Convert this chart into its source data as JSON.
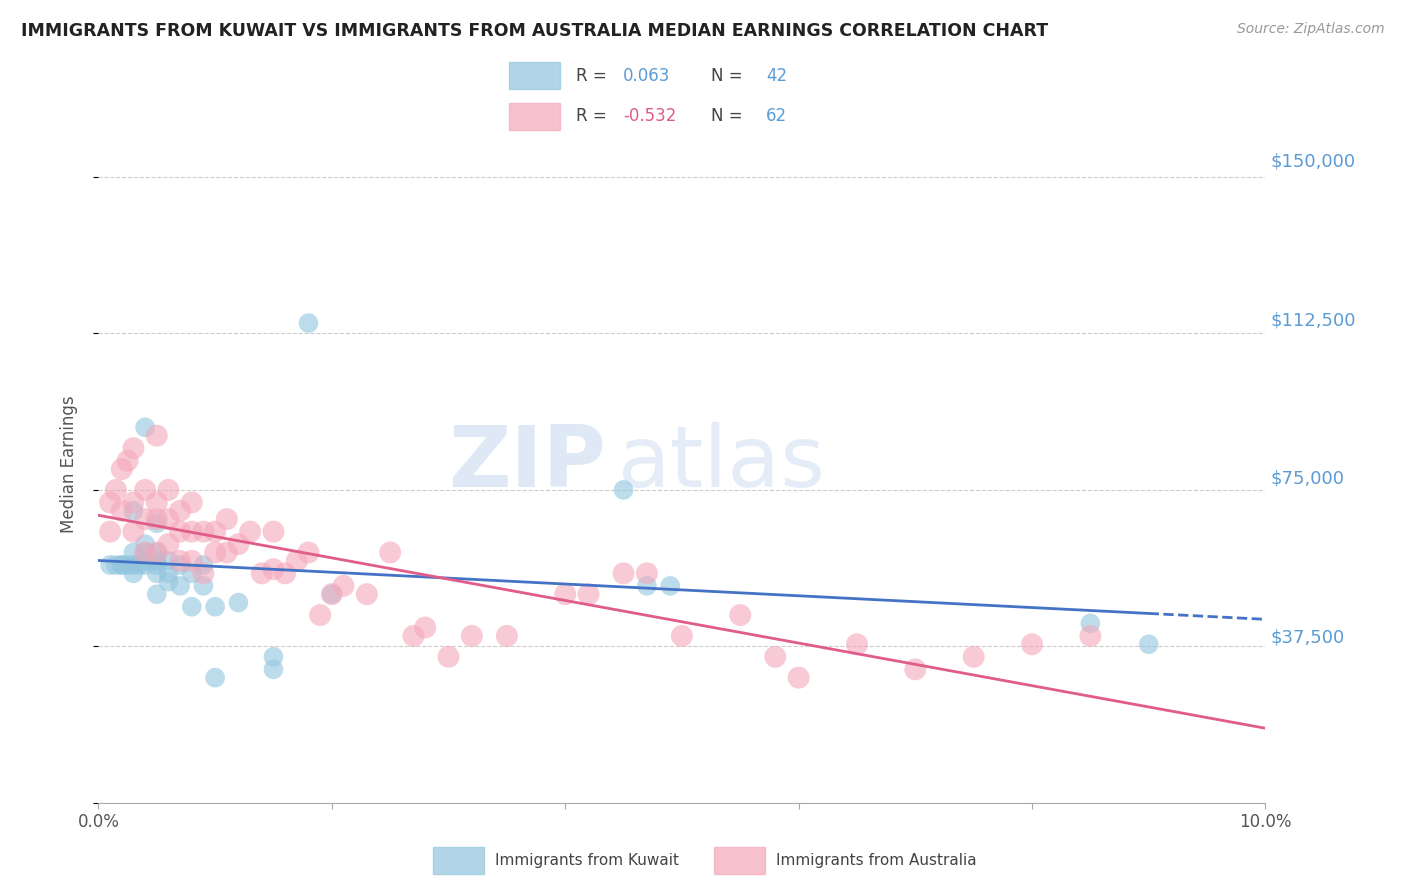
{
  "title": "IMMIGRANTS FROM KUWAIT VS IMMIGRANTS FROM AUSTRALIA MEDIAN EARNINGS CORRELATION CHART",
  "source": "Source: ZipAtlas.com",
  "ylabel": "Median Earnings",
  "xlim": [
    0.0,
    0.1
  ],
  "ylim": [
    0,
    162500
  ],
  "yticks": [
    0,
    37500,
    75000,
    112500,
    150000
  ],
  "ytick_labels": [
    "",
    "$37,500",
    "$75,000",
    "$112,500",
    "$150,000"
  ],
  "xticks": [
    0.0,
    0.02,
    0.04,
    0.06,
    0.08,
    0.1
  ],
  "xtick_labels": [
    "0.0%",
    "",
    "",
    "",
    "",
    "10.0%"
  ],
  "kuwait_color": "#92c5de",
  "australia_color": "#f4a7b9",
  "kuwait_label": "Immigrants from Kuwait",
  "australia_label": "Immigrants from Australia",
  "kuwait_R": "0.063",
  "kuwait_N": "42",
  "australia_R": "-0.532",
  "australia_N": "62",
  "watermark_zip": "ZIP",
  "watermark_atlas": "atlas",
  "background_color": "#ffffff",
  "grid_color": "#cccccc",
  "right_axis_color": "#5b9bd5",
  "trend_blue_color": "#4472c4",
  "trend_pink_color": "#e05c8a",
  "legend_edge_color": "#bbbbbb",
  "text_color_dark": "#444444",
  "text_color_blue": "#5b9bd5",
  "text_color_pink": "#e05c8a",
  "kuwait_x": [
    0.001,
    0.0015,
    0.002,
    0.002,
    0.0025,
    0.003,
    0.003,
    0.003,
    0.003,
    0.0035,
    0.004,
    0.004,
    0.004,
    0.004,
    0.004,
    0.005,
    0.005,
    0.005,
    0.005,
    0.005,
    0.005,
    0.006,
    0.006,
    0.006,
    0.007,
    0.007,
    0.008,
    0.008,
    0.009,
    0.009,
    0.01,
    0.01,
    0.012,
    0.015,
    0.015,
    0.018,
    0.02,
    0.045,
    0.047,
    0.049,
    0.085,
    0.09
  ],
  "kuwait_y": [
    57000,
    57000,
    57000,
    57000,
    57000,
    55000,
    57000,
    60000,
    70000,
    57000,
    57000,
    58000,
    60000,
    62000,
    90000,
    50000,
    55000,
    57000,
    58000,
    60000,
    67000,
    53000,
    55000,
    58000,
    52000,
    57000,
    47000,
    55000,
    52000,
    57000,
    30000,
    47000,
    48000,
    35000,
    32000,
    115000,
    50000,
    75000,
    52000,
    52000,
    43000,
    38000
  ],
  "australia_x": [
    0.001,
    0.001,
    0.0015,
    0.002,
    0.002,
    0.0025,
    0.003,
    0.003,
    0.003,
    0.004,
    0.004,
    0.004,
    0.005,
    0.005,
    0.005,
    0.005,
    0.006,
    0.006,
    0.006,
    0.007,
    0.007,
    0.007,
    0.008,
    0.008,
    0.008,
    0.009,
    0.009,
    0.01,
    0.01,
    0.011,
    0.011,
    0.012,
    0.013,
    0.014,
    0.015,
    0.015,
    0.016,
    0.017,
    0.018,
    0.019,
    0.02,
    0.021,
    0.023,
    0.025,
    0.027,
    0.028,
    0.03,
    0.032,
    0.035,
    0.04,
    0.042,
    0.045,
    0.047,
    0.05,
    0.055,
    0.058,
    0.06,
    0.065,
    0.07,
    0.075,
    0.08,
    0.085
  ],
  "australia_y": [
    65000,
    72000,
    75000,
    70000,
    80000,
    82000,
    65000,
    72000,
    85000,
    60000,
    68000,
    75000,
    60000,
    68000,
    72000,
    88000,
    62000,
    68000,
    75000,
    58000,
    65000,
    70000,
    58000,
    65000,
    72000,
    55000,
    65000,
    60000,
    65000,
    60000,
    68000,
    62000,
    65000,
    55000,
    56000,
    65000,
    55000,
    58000,
    60000,
    45000,
    50000,
    52000,
    50000,
    60000,
    40000,
    42000,
    35000,
    40000,
    40000,
    50000,
    50000,
    55000,
    55000,
    40000,
    45000,
    35000,
    30000,
    38000,
    32000,
    35000,
    38000,
    40000
  ],
  "kuwait_marker_size": 200,
  "australia_marker_size": 250
}
